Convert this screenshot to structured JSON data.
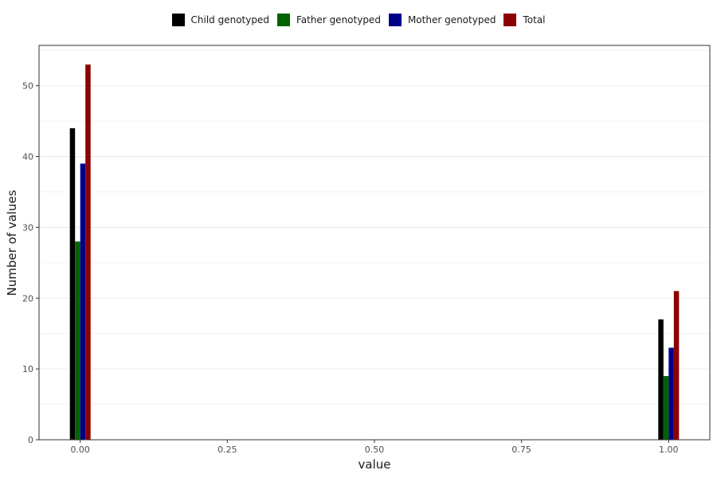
{
  "chart_data": {
    "type": "bar",
    "title": "",
    "xlabel": "value",
    "ylabel": "Number of values",
    "x": [
      0,
      1
    ],
    "x_ticks": [
      "0.00",
      "0.25",
      "0.50",
      "0.75",
      "1.00"
    ],
    "x_tick_values": [
      0,
      0.25,
      0.5,
      0.75,
      1
    ],
    "y_ticks": [
      "0",
      "10",
      "20",
      "30",
      "40",
      "50"
    ],
    "y_tick_values": [
      0,
      10,
      20,
      30,
      40,
      50
    ],
    "xlim": [
      -0.07,
      1.07
    ],
    "ylim": [
      0,
      55.7
    ],
    "grid": true,
    "legend_position": "top",
    "series": [
      {
        "name": "Child genotyped",
        "color": "#000000",
        "values": [
          44,
          17
        ]
      },
      {
        "name": "Father genotyped",
        "color": "#006400",
        "values": [
          28,
          9
        ]
      },
      {
        "name": "Mother genotyped",
        "color": "#00008B",
        "values": [
          39,
          13
        ]
      },
      {
        "name": "Total",
        "color": "#8B0000",
        "values": [
          53,
          21
        ]
      }
    ]
  }
}
